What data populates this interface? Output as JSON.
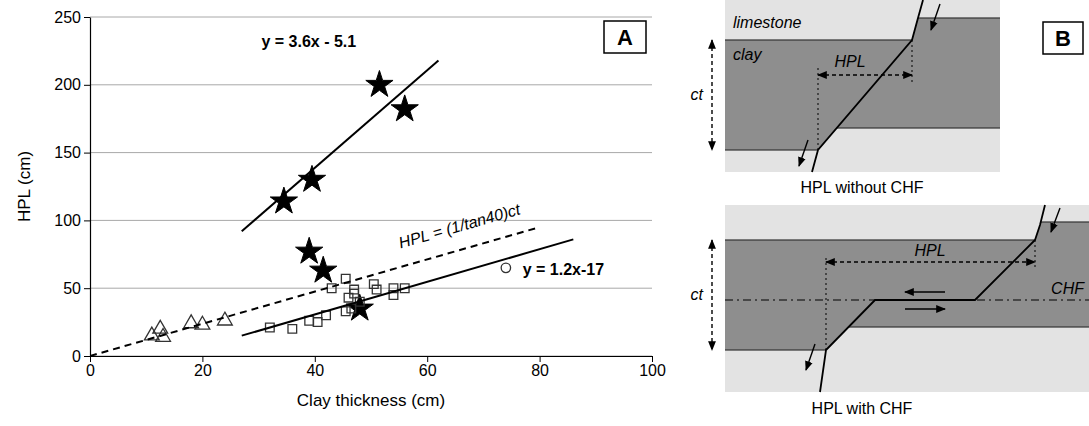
{
  "chart_data": {
    "type": "scatter",
    "panel_label": "A",
    "x_label": "Clay thickness (cm)",
    "y_label": "HPL (cm)",
    "xlim": [
      0,
      100
    ],
    "ylim": [
      0,
      250
    ],
    "xticks": [
      0,
      20,
      40,
      60,
      80,
      100
    ],
    "yticks": [
      0,
      50,
      100,
      150,
      200,
      250
    ],
    "grid": true,
    "series": [
      {
        "type": "scatter",
        "marker": "star",
        "color": "#000000",
        "x": [
          34.5,
          39.5,
          51.5,
          56,
          39,
          41.5,
          48
        ],
        "values": [
          114,
          130,
          200,
          182,
          77,
          63,
          35
        ]
      },
      {
        "type": "scatter",
        "marker": "triangle-open",
        "color": "#333333",
        "x": [
          11,
          12.5,
          13,
          18,
          20,
          24
        ],
        "values": [
          15,
          20,
          14,
          24,
          23,
          26
        ]
      },
      {
        "type": "scatter",
        "marker": "square-open",
        "color": "#333333",
        "x": [
          32,
          36,
          39,
          40.5,
          42,
          43,
          45.5,
          46,
          46.5,
          47,
          47,
          48,
          50.5,
          51,
          54,
          54,
          56,
          45.5
        ],
        "values": [
          21,
          20,
          26,
          25,
          30,
          50,
          57,
          43,
          35,
          46,
          49,
          40,
          53,
          49,
          45,
          50,
          50,
          33
        ]
      },
      {
        "type": "scatter",
        "marker": "circle-open",
        "color": "#333333",
        "x": [
          74
        ],
        "values": [
          65
        ]
      },
      {
        "type": "line",
        "line_style": "solid",
        "color": "#000000",
        "x": [
          27,
          62
        ],
        "values": [
          92,
          218
        ],
        "label": {
          "text": "y = 3.6x - 5.1",
          "x": 30.5,
          "y": 228
        }
      },
      {
        "type": "line",
        "line_style": "dashed",
        "color": "#000000",
        "x": [
          0,
          80
        ],
        "values": [
          0,
          95
        ],
        "label": {
          "text": "HPL = (1/tan40)ct",
          "x": 66,
          "y": 92
        }
      },
      {
        "type": "line",
        "line_style": "solid",
        "color": "#000000",
        "x": [
          27,
          86
        ],
        "values": [
          15,
          86
        ],
        "label": {
          "text": "y = 1.2x-17",
          "x": 77,
          "y": 60
        }
      }
    ]
  },
  "diagram": {
    "panel_label": "B",
    "top": {
      "upper_label": "limestone",
      "layer_label": "clay",
      "thickness_label": "ct",
      "length_label": "HPL",
      "caption": "HPL without CHF"
    },
    "bottom": {
      "thickness_label": "ct",
      "length_label": "HPL",
      "fault_label": "CHF",
      "caption": "HPL with CHF"
    }
  }
}
